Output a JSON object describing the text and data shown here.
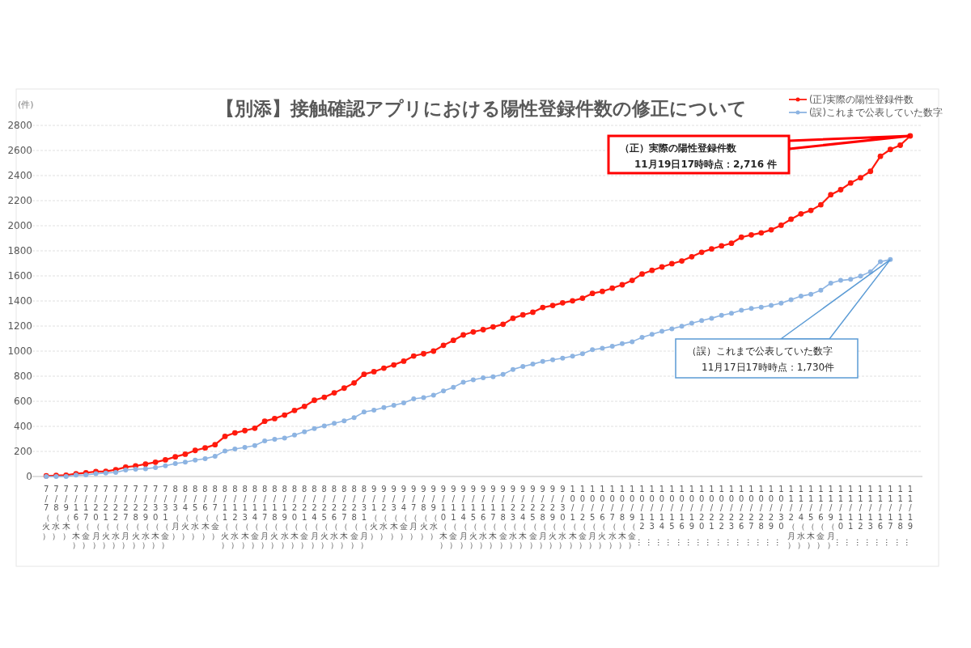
{
  "chart_data": {
    "type": "line",
    "title": "【別添】接触確認アプリにおける陽性登録件数の修正について",
    "ylabel": "(件)",
    "categories": [
      "7/7（火）",
      "7/8（水）",
      "7/9（木）",
      "7/16（木）",
      "7/17（金）",
      "7/20（月）",
      "7/21（火）",
      "7/22（水）",
      "7/27（月）",
      "7/28（火）",
      "7/29（水）",
      "7/30（木）",
      "7/31（金）",
      "8/3（月）",
      "8/4（火）",
      "8/5（水）",
      "8/6（木）",
      "8/7（金）",
      "8/11（火）",
      "8/12（水）",
      "8/13（木）",
      "8/14（金）",
      "8/17（月）",
      "8/18（火）",
      "8/19（水）",
      "8/20（木）",
      "8/21（金）",
      "8/24（月）",
      "8/25（火）",
      "8/26（水）",
      "8/27（木）",
      "8/28（金）",
      "8/31（月）",
      "9/1（火）",
      "9/2（水）",
      "9/3（木）",
      "9/4（金）",
      "9/7（月）",
      "9/8（火）",
      "9/9（水）",
      "9/10（木）",
      "9/11（金）",
      "9/14（月）",
      "9/15（火）",
      "9/16（水）",
      "9/17（木）",
      "9/18（金）",
      "9/23（水）",
      "9/24（木）",
      "9/25（金）",
      "9/28（月）",
      "9/29（火）",
      "9/30（水）",
      "10/1（木）",
      "10/2（金）",
      "10/5（月）",
      "10/6（火）",
      "10/7（水）",
      "10/8（木）",
      "10/9（金）",
      "10/12…",
      "10/13…",
      "10/14…",
      "10/15…",
      "10/16…",
      "10/19…",
      "10/20…",
      "10/21…",
      "10/22…",
      "10/23…",
      "10/26…",
      "10/27…",
      "10/28…",
      "10/29…",
      "10/30…",
      "11/2（月）",
      "11/4（水）",
      "11/5（木）",
      "11/6（金）",
      "11/9（月）",
      "11/10…",
      "11/11…",
      "11/12…",
      "11/13…",
      "11/16…",
      "11/17…",
      "11/18…",
      "11/19…"
    ],
    "series": [
      {
        "name": "(正)実際の陽性登録件数",
        "color": "#ff1a0d",
        "values": [
          5,
          8,
          10,
          22,
          30,
          39,
          41,
          54,
          75,
          84,
          99,
          114,
          133,
          157,
          178,
          208,
          228,
          254,
          320,
          348,
          366,
          385,
          441,
          462,
          490,
          527,
          559,
          608,
          632,
          667,
          705,
          746,
          815,
          836,
          864,
          890,
          920,
          961,
          979,
          1000,
          1046,
          1086,
          1129,
          1153,
          1171,
          1193,
          1214,
          1262,
          1289,
          1310,
          1348,
          1364,
          1385,
          1401,
          1422,
          1460,
          1476,
          1502,
          1529,
          1564,
          1615,
          1644,
          1671,
          1697,
          1719,
          1753,
          1788,
          1815,
          1839,
          1860,
          1908,
          1927,
          1943,
          1967,
          2004,
          2052,
          2095,
          2122,
          2167,
          2247,
          2287,
          2341,
          2383,
          2434,
          2554,
          2608,
          2642,
          2716
        ]
      },
      {
        "name": "(誤)これまで公表していた数字",
        "color": "#8db4e2",
        "values": [
          0,
          0,
          0,
          11,
          13,
          22,
          28,
          32,
          52,
          58,
          62,
          71,
          86,
          103,
          114,
          131,
          142,
          161,
          204,
          219,
          232,
          247,
          284,
          297,
          307,
          331,
          357,
          383,
          404,
          424,
          443,
          469,
          514,
          529,
          550,
          568,
          587,
          619,
          629,
          648,
          683,
          712,
          752,
          771,
          787,
          795,
          814,
          854,
          878,
          896,
          918,
          931,
          944,
          960,
          979,
          1011,
          1022,
          1038,
          1059,
          1075,
          1110,
          1134,
          1158,
          1177,
          1198,
          1222,
          1243,
          1262,
          1286,
          1302,
          1326,
          1340,
          1350,
          1364,
          1382,
          1409,
          1438,
          1454,
          1486,
          1542,
          1564,
          1572,
          1599,
          1633,
          1713,
          1730,
          null,
          null
        ]
      }
    ],
    "ylim": [
      0,
      2800
    ],
    "yticks": [
      0,
      200,
      400,
      600,
      800,
      1000,
      1200,
      1400,
      1600,
      1800,
      2000,
      2200,
      2400,
      2600,
      2800
    ],
    "grid": "y",
    "legend": "top right",
    "marker": "circle",
    "line_style": "solid",
    "annotations": [
      {
        "text": "（正）実際の陽性登録件数\n11月19日17時時点：2,716 件",
        "x": "11/19…",
        "y": 2716
      },
      "（誤）これまで公表していた数字\n11月17日17時時点：1,730件"
    ]
  }
}
